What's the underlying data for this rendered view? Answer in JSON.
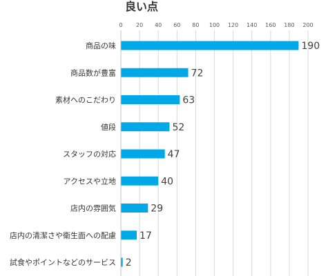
{
  "chart_data": {
    "type": "bar",
    "orientation": "horizontal",
    "title": "良い点",
    "xlabel": "",
    "ylabel": "",
    "xlim": [
      0,
      200
    ],
    "x_ticks": [
      0,
      20,
      40,
      60,
      80,
      100,
      120,
      140,
      160,
      180,
      200
    ],
    "x_axis_position": "top",
    "grid": true,
    "legend": "none",
    "bar_color": "#00a8e8",
    "categories": [
      "商品の味",
      "商品数が豊富",
      "素材へのこだわり",
      "値段",
      "スタッフの対応",
      "アクセスや立地",
      "店内の雰囲気",
      "店内の清潔さや衛生面への配慮",
      "試食やポイントなどのサービス"
    ],
    "values": [
      190,
      72,
      63,
      52,
      47,
      40,
      29,
      17,
      2
    ]
  }
}
